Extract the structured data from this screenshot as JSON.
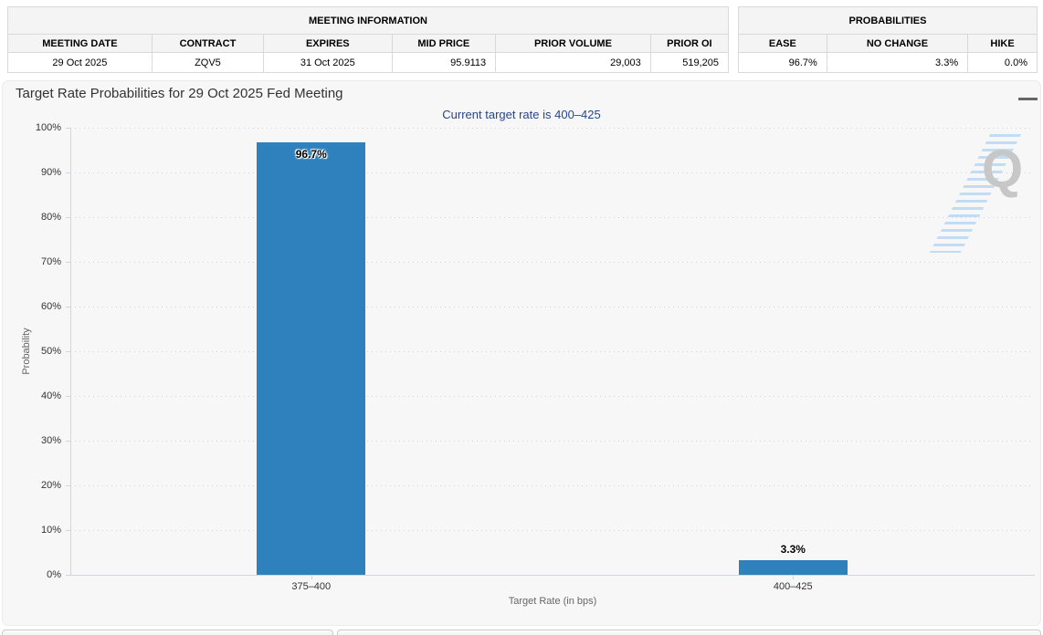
{
  "meeting_information": {
    "title": "MEETING INFORMATION",
    "columns": [
      "MEETING DATE",
      "CONTRACT",
      "EXPIRES",
      "MID PRICE",
      "PRIOR VOLUME",
      "PRIOR OI"
    ],
    "row": [
      "29 Oct 2025",
      "ZQV5",
      "31 Oct 2025",
      "95.9113",
      "29,003",
      "519,205"
    ]
  },
  "probabilities": {
    "title": "PROBABILITIES",
    "columns": [
      "EASE",
      "NO CHANGE",
      "HIKE"
    ],
    "row": [
      "96.7%",
      "3.3%",
      "0.0%"
    ]
  },
  "chart_data": {
    "type": "bar",
    "title": "Target Rate Probabilities for 29 Oct 2025 Fed Meeting",
    "subtitle": "Current target rate is 400–425",
    "categories": [
      "375–400",
      "400–425"
    ],
    "values": [
      96.7,
      3.3
    ],
    "data_labels": [
      "96.7%",
      "3.3%"
    ],
    "xlabel": "Target Rate (in bps)",
    "ylabel": "Probability",
    "ylim": [
      0,
      100
    ],
    "ytick_step": 10,
    "ytick_suffix": "%",
    "grid": "dotted horizontal gridlines, light gray",
    "legend": "none",
    "bar_color": "#2e81bc",
    "title_color": "#333333",
    "subtitle_color": "#26478d"
  },
  "watermark": {
    "letter": "Q"
  }
}
